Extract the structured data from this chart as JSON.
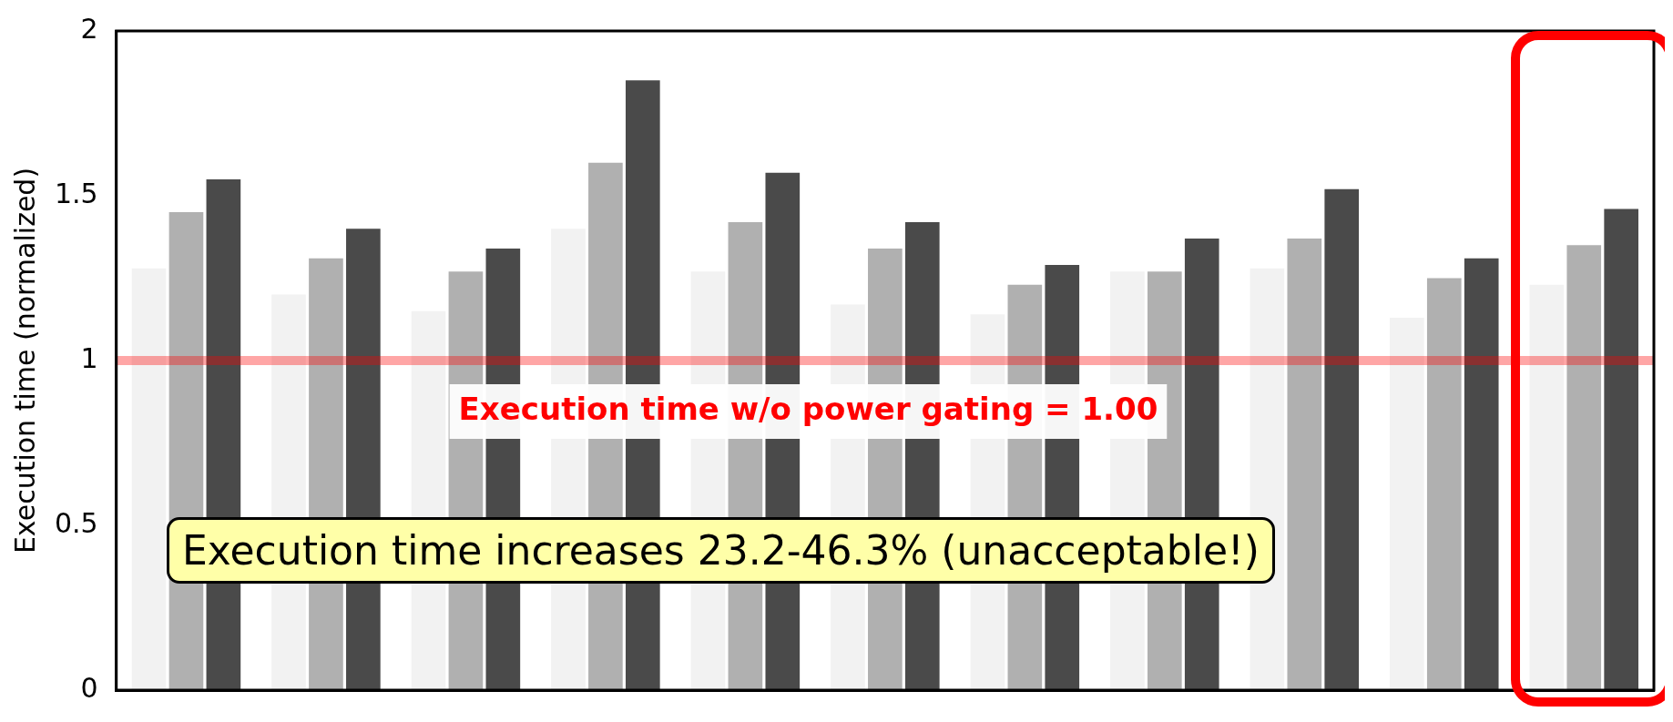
{
  "chart_data": {
    "type": "bar",
    "ylabel": "Execution time (normalized)",
    "categories": [
      null,
      null,
      null,
      null,
      null,
      null,
      null,
      null,
      null,
      null,
      null
    ],
    "series": [
      {
        "color": "#f2f2f2",
        "values": [
          1.28,
          1.2,
          1.15,
          1.4,
          1.27,
          1.17,
          1.14,
          1.27,
          1.28,
          1.13,
          1.23
        ]
      },
      {
        "color": "#b0b0b0",
        "values": [
          1.45,
          1.31,
          1.27,
          1.6,
          1.42,
          1.34,
          1.23,
          1.27,
          1.37,
          1.25,
          1.35
        ]
      },
      {
        "color": "#4a4a4a",
        "values": [
          1.55,
          1.4,
          1.34,
          1.85,
          1.57,
          1.42,
          1.29,
          1.37,
          1.52,
          1.31,
          1.46
        ]
      }
    ],
    "ylim": [
      0,
      2
    ],
    "yticks": [
      0,
      0.5,
      1,
      1.5,
      2
    ],
    "grid": false,
    "legend": false,
    "tick_labels": "y",
    "ref_lines": [
      {
        "axis": "y",
        "value": 1,
        "label": "Execution time w/o power gating = 1.00",
        "color": "#ff0000"
      }
    ],
    "annotations": [
      "Execution time increases 23.2-46.3% (unacceptable!)"
    ]
  }
}
